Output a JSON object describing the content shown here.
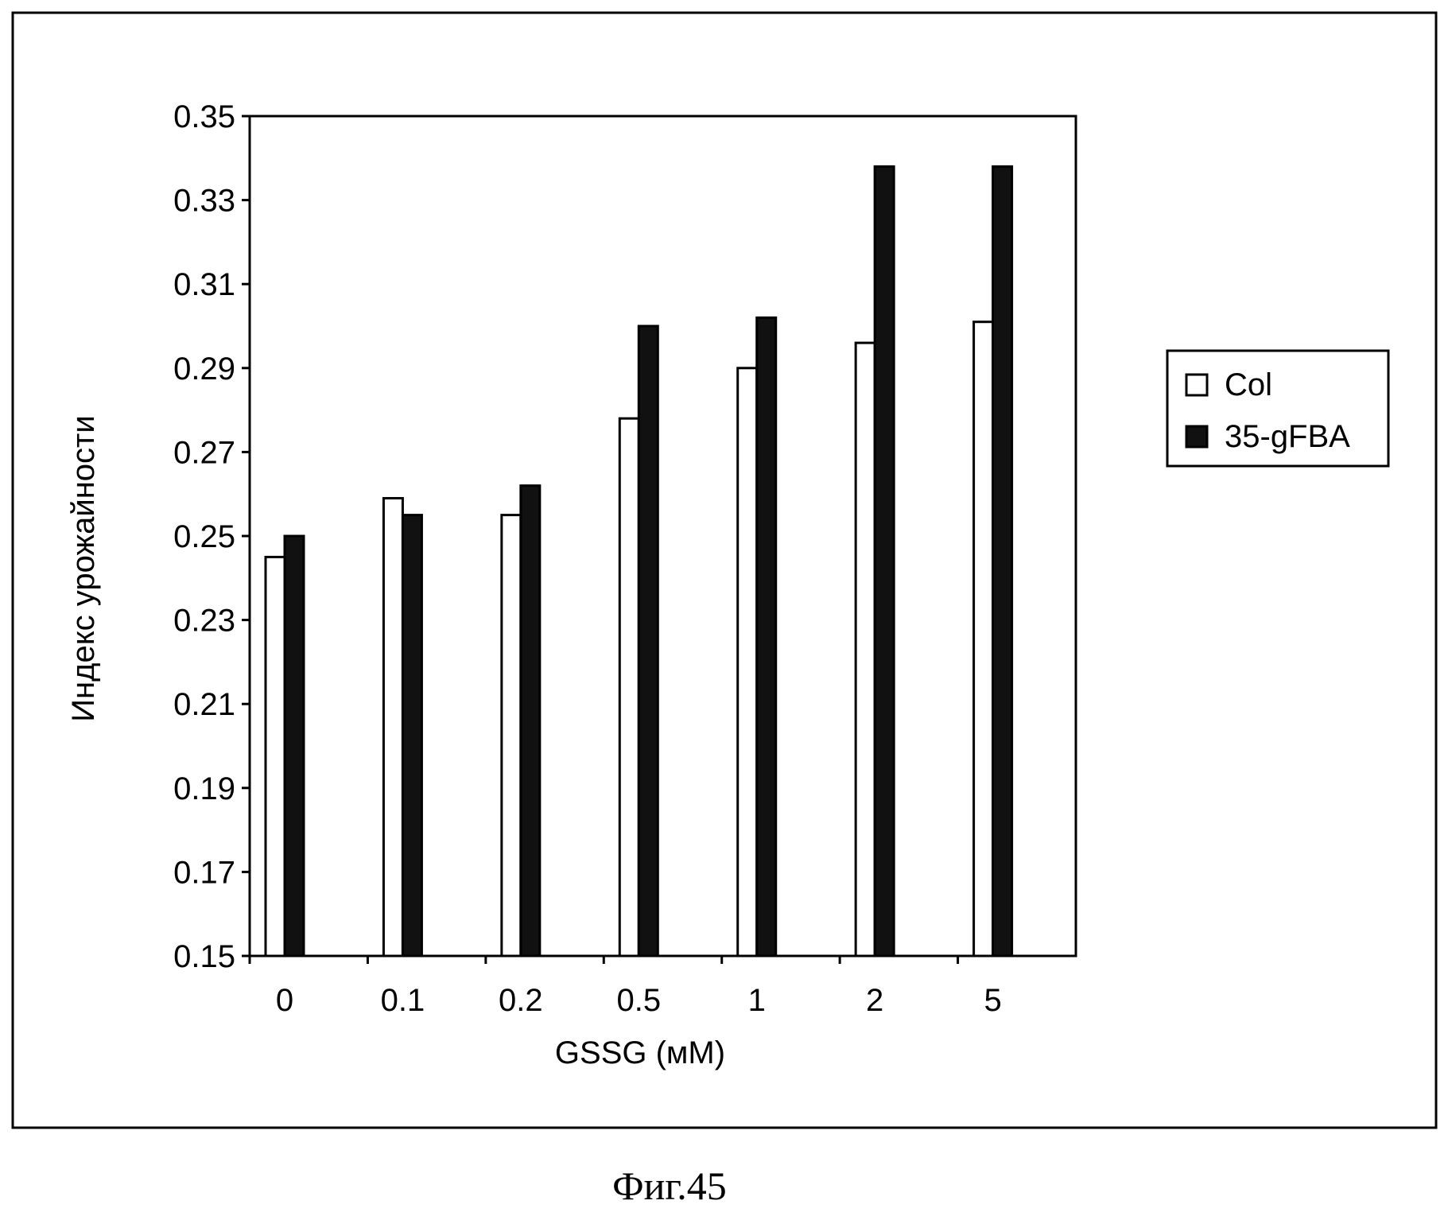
{
  "chart_data": {
    "type": "bar",
    "title": "",
    "xlabel": "GSSG (мМ)",
    "ylabel": "Индекс урожайности",
    "categories": [
      "0",
      "0.1",
      "0.2",
      "0.5",
      "1",
      "2",
      "5"
    ],
    "ylim": [
      0.15,
      0.35
    ],
    "yticks": [
      "0.15",
      "0.17",
      "0.19",
      "0.21",
      "0.23",
      "0.25",
      "0.27",
      "0.29",
      "0.31",
      "0.33",
      "0.35"
    ],
    "grid": false,
    "legend_position": "right",
    "series": [
      {
        "name": "Col",
        "values": [
          0.245,
          0.259,
          0.255,
          0.278,
          0.29,
          0.296,
          0.301
        ],
        "color": "#ffffff"
      },
      {
        "name": "35-gFBA",
        "values": [
          0.25,
          0.255,
          0.262,
          0.3,
          0.302,
          0.338,
          0.338
        ],
        "color": "#111111"
      }
    ]
  },
  "caption": "Фиг.45"
}
